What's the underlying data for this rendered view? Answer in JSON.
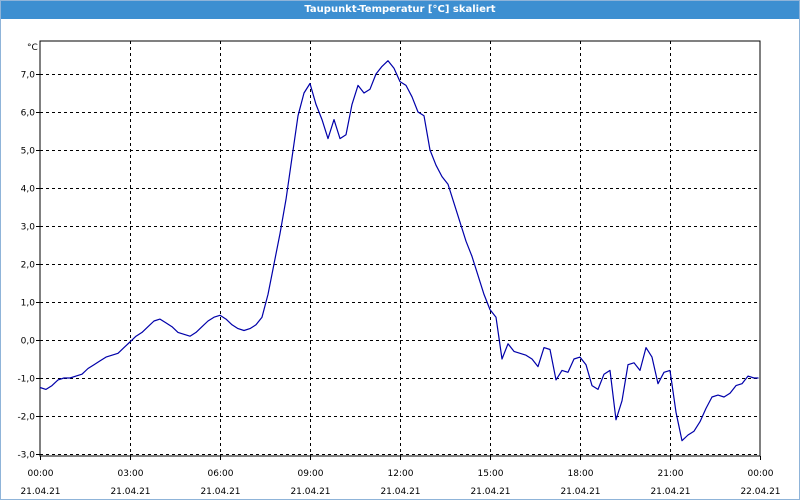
{
  "window": {
    "title": "Taupunkt-Temperatur [°C] skaliert"
  },
  "colors": {
    "title_bar": "#3d8fd1",
    "series_line": "#0000aa",
    "grid": "#000000"
  },
  "chart_data": {
    "type": "line",
    "title": "Taupunkt-Temperatur [°C] skaliert",
    "y_unit": "°C",
    "xlabel": "",
    "ylabel": "",
    "ylim": [
      -3.2,
      7.8
    ],
    "xlim_hours": [
      0,
      24
    ],
    "grid": true,
    "y_ticks": [
      "7,0",
      "6,0",
      "5,0",
      "4,0",
      "3,0",
      "2,0",
      "1,0",
      "0,0",
      "-1,0",
      "-2,0",
      "-3,0"
    ],
    "x_ticks": [
      {
        "time": "00:00",
        "date": "21.04.21"
      },
      {
        "time": "03:00",
        "date": "21.04.21"
      },
      {
        "time": "06:00",
        "date": "21.04.21"
      },
      {
        "time": "09:00",
        "date": "21.04.21"
      },
      {
        "time": "12:00",
        "date": "21.04.21"
      },
      {
        "time": "15:00",
        "date": "21.04.21"
      },
      {
        "time": "18:00",
        "date": "21.04.21"
      },
      {
        "time": "21:00",
        "date": "21.04.21"
      },
      {
        "time": "00:00",
        "date": "22.04.21"
      }
    ],
    "series": [
      {
        "x_hours": [
          0.0,
          0.2,
          0.4,
          0.6,
          0.8,
          1.0,
          1.2,
          1.4,
          1.6,
          1.8,
          2.0,
          2.2,
          2.4,
          2.6,
          2.8,
          3.0,
          3.2,
          3.4,
          3.6,
          3.8,
          4.0,
          4.2,
          4.4,
          4.6,
          4.8,
          5.0,
          5.2,
          5.4,
          5.6,
          5.8,
          6.0,
          6.2,
          6.4,
          6.6,
          6.8,
          7.0,
          7.2,
          7.4,
          7.6,
          7.8,
          8.0,
          8.2,
          8.4,
          8.6,
          8.8,
          9.0,
          9.2,
          9.4,
          9.6,
          9.8,
          10.0,
          10.2,
          10.4,
          10.6,
          10.8,
          11.0,
          11.2,
          11.4,
          11.6,
          11.8,
          12.0,
          12.2,
          12.4,
          12.6,
          12.8,
          13.0,
          13.2,
          13.4,
          13.6,
          13.8,
          14.0,
          14.2,
          14.4,
          14.6,
          14.8,
          15.0,
          15.2,
          15.4,
          15.6,
          15.8,
          16.0,
          16.2,
          16.4,
          16.6,
          16.8,
          17.0,
          17.2,
          17.4,
          17.6,
          17.8,
          18.0,
          18.2,
          18.4,
          18.6,
          18.8,
          19.0,
          19.2,
          19.4,
          19.6,
          19.8,
          20.0,
          20.2,
          20.4,
          20.6,
          20.8,
          21.0,
          21.2,
          21.4,
          21.6,
          21.8,
          22.0,
          22.2,
          22.4,
          22.6,
          22.8,
          23.0,
          23.2,
          23.4,
          23.6,
          23.8,
          23.95
        ],
        "values": [
          -1.25,
          -1.3,
          -1.2,
          -1.05,
          -1.0,
          -1.0,
          -0.95,
          -0.9,
          -0.75,
          -0.65,
          -0.55,
          -0.45,
          -0.4,
          -0.35,
          -0.2,
          -0.05,
          0.1,
          0.2,
          0.35,
          0.5,
          0.55,
          0.45,
          0.35,
          0.2,
          0.15,
          0.1,
          0.2,
          0.35,
          0.5,
          0.6,
          0.65,
          0.55,
          0.4,
          0.3,
          0.25,
          0.3,
          0.4,
          0.6,
          1.2,
          2.0,
          2.8,
          3.7,
          4.8,
          5.9,
          6.5,
          6.75,
          6.2,
          5.8,
          5.3,
          5.8,
          5.3,
          5.4,
          6.2,
          6.7,
          6.5,
          6.6,
          7.0,
          7.2,
          7.35,
          7.15,
          6.8,
          6.7,
          6.4,
          6.0,
          5.9,
          5.0,
          4.6,
          4.3,
          4.1,
          3.6,
          3.1,
          2.6,
          2.2,
          1.7,
          1.2,
          0.8,
          0.6,
          -0.5,
          -0.1,
          -0.3,
          -0.35,
          -0.4,
          -0.5,
          -0.7,
          -0.2,
          -0.25,
          -1.05,
          -0.8,
          -0.85,
          -0.5,
          -0.45,
          -0.65,
          -1.2,
          -1.3,
          -0.9,
          -0.8,
          -2.1,
          -1.6,
          -0.65,
          -0.6,
          -0.8,
          -0.2,
          -0.45,
          -1.15,
          -0.85,
          -0.8,
          -1.9,
          -2.65,
          -2.5,
          -2.4,
          -2.15,
          -1.8,
          -1.5,
          -1.45,
          -1.5,
          -1.4,
          -1.2,
          -1.15,
          -0.95,
          -1.0,
          -1.0
        ]
      }
    ]
  }
}
